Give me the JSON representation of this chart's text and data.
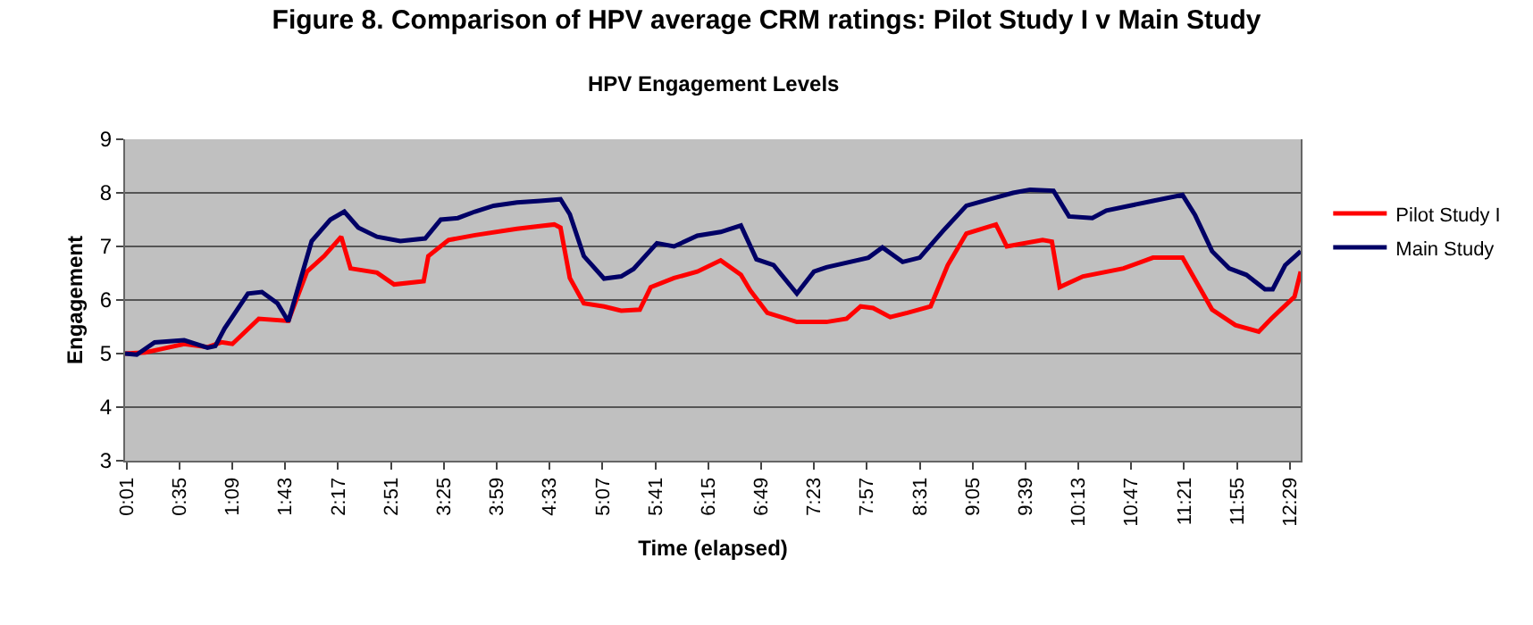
{
  "chart_data": {
    "type": "line",
    "title": "Figure 8. Comparison of HPV average CRM ratings: Pilot Study I v Main Study",
    "subtitle": "HPV Engagement Levels",
    "xlabel": "Time (elapsed)",
    "ylabel": "Engagement",
    "xlim": [
      0,
      756
    ],
    "ylim": [
      3,
      9
    ],
    "yticks": [
      3,
      4,
      5,
      6,
      7,
      8,
      9
    ],
    "xticks": [
      {
        "value": 1,
        "label": "0:01"
      },
      {
        "value": 35,
        "label": "0:35"
      },
      {
        "value": 69,
        "label": "1:09"
      },
      {
        "value": 103,
        "label": "1:43"
      },
      {
        "value": 137,
        "label": "2:17"
      },
      {
        "value": 171,
        "label": "2:51"
      },
      {
        "value": 205,
        "label": "3:25"
      },
      {
        "value": 239,
        "label": "3:59"
      },
      {
        "value": 273,
        "label": "4:33"
      },
      {
        "value": 307,
        "label": "5:07"
      },
      {
        "value": 341,
        "label": "5:41"
      },
      {
        "value": 375,
        "label": "6:15"
      },
      {
        "value": 409,
        "label": "6:49"
      },
      {
        "value": 443,
        "label": "7:23"
      },
      {
        "value": 477,
        "label": "7:57"
      },
      {
        "value": 511,
        "label": "8:31"
      },
      {
        "value": 545,
        "label": "9:05"
      },
      {
        "value": 579,
        "label": "9:39"
      },
      {
        "value": 613,
        "label": "10:13"
      },
      {
        "value": 647,
        "label": "10:47"
      },
      {
        "value": 681,
        "label": "11:21"
      },
      {
        "value": 715,
        "label": "11:55"
      },
      {
        "value": 749,
        "label": "12:29"
      }
    ],
    "grid": "y",
    "legend": "right",
    "marker": "none",
    "line_style": "solid",
    "series": [
      {
        "name": "Pilot Study I",
        "color": "#ff0000",
        "x": [
          0,
          13,
          24,
          38,
          53,
          62,
          69,
          86,
          105,
          117,
          128,
          139,
          145,
          162,
          173,
          192,
          195,
          208,
          225,
          252,
          276,
          280,
          286,
          295,
          308,
          319,
          331,
          338,
          353,
          368,
          383,
          396,
          402,
          413,
          432,
          451,
          464,
          473,
          481,
          492,
          503,
          518,
          529,
          541,
          560,
          567,
          590,
          596,
          601,
          616,
          642,
          661,
          680,
          699,
          714,
          729,
          737,
          752,
          756
        ],
        "values": [
          5.0,
          5.02,
          5.09,
          5.18,
          5.12,
          5.21,
          5.18,
          5.65,
          5.61,
          6.53,
          6.82,
          7.18,
          6.59,
          6.51,
          6.29,
          6.35,
          6.82,
          7.12,
          7.21,
          7.33,
          7.41,
          7.35,
          6.41,
          5.94,
          5.88,
          5.8,
          5.82,
          6.24,
          6.41,
          6.53,
          6.74,
          6.47,
          6.18,
          5.76,
          5.59,
          5.59,
          5.65,
          5.88,
          5.85,
          5.68,
          5.76,
          5.88,
          6.65,
          7.24,
          7.41,
          7.0,
          7.12,
          7.09,
          6.24,
          6.44,
          6.59,
          6.79,
          6.79,
          5.82,
          5.53,
          5.41,
          5.65,
          6.06,
          6.53
        ]
      },
      {
        "name": "Main Study",
        "color": "#000066",
        "x": [
          0,
          7.5,
          19,
          38,
          53,
          58,
          64,
          79,
          88,
          98,
          105,
          113,
          120,
          132,
          141,
          150,
          162,
          177,
          193,
          203,
          214,
          225,
          237,
          252,
          267,
          280,
          286,
          295,
          308,
          319,
          327,
          342,
          353,
          368,
          383,
          396,
          406,
          417,
          432,
          443,
          451,
          478,
          487,
          500,
          511,
          526,
          541,
          556,
          571,
          582,
          597,
          607,
          622,
          631,
          661,
          680,
          688,
          699,
          710,
          721,
          733,
          738,
          746,
          756
        ],
        "values": [
          5.0,
          4.98,
          5.21,
          5.25,
          5.11,
          5.14,
          5.47,
          6.12,
          6.15,
          5.94,
          5.6,
          6.4,
          7.1,
          7.5,
          7.65,
          7.35,
          7.18,
          7.1,
          7.15,
          7.5,
          7.53,
          7.65,
          7.76,
          7.82,
          7.85,
          7.88,
          7.6,
          6.82,
          6.4,
          6.44,
          6.58,
          7.06,
          7.0,
          7.2,
          7.27,
          7.39,
          6.76,
          6.65,
          6.12,
          6.53,
          6.61,
          6.79,
          6.98,
          6.71,
          6.79,
          7.29,
          7.76,
          7.88,
          8.0,
          8.06,
          8.04,
          7.56,
          7.53,
          7.67,
          7.85,
          7.96,
          7.59,
          6.91,
          6.59,
          6.47,
          6.2,
          6.2,
          6.65,
          6.91
        ]
      }
    ]
  }
}
